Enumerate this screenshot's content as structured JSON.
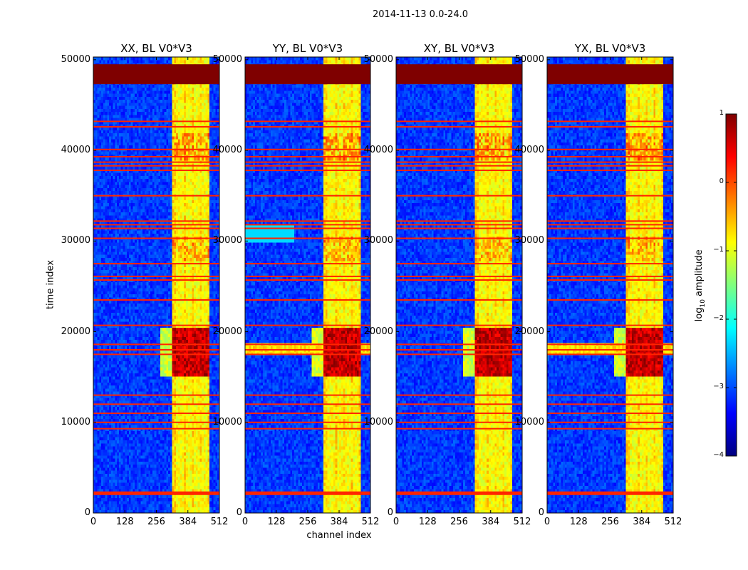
{
  "figure": {
    "suptitle": "2014-11-13 0.0-24.0"
  },
  "chart_data": {
    "type": "heatmap",
    "title": "2014-11-13 0.0-24.0",
    "xlabel": "channel index",
    "ylabel": "time index",
    "xlim": [
      0,
      512
    ],
    "ylim": [
      0,
      50300
    ],
    "xticks": [
      0,
      128,
      256,
      384,
      512
    ],
    "xtick_labels": [
      "0",
      "128",
      "256",
      "384",
      "512"
    ],
    "yticks": [
      0,
      10000,
      20000,
      30000,
      40000,
      50000
    ],
    "ytick_labels": [
      "0",
      "10000",
      "20000",
      "30000",
      "40000",
      "50000"
    ],
    "panels": [
      {
        "name": "XX, BL V0*V3",
        "title": "XX, BL V0*V3"
      },
      {
        "name": "YY, BL V0*V3",
        "title": "YY, BL V0*V3"
      },
      {
        "name": "XY, BL V0*V3",
        "title": "XY, BL V0*V3"
      },
      {
        "name": "YX, BL V0*V3",
        "title": "YX, BL V0*V3"
      }
    ],
    "colorbar": {
      "label": "log10 amplitude",
      "label_prefix": "log",
      "label_sub": "10",
      "label_suffix": " amplitude",
      "range": [
        -4,
        1
      ],
      "ticks": [
        1,
        0,
        -1,
        -2,
        -3,
        -4
      ],
      "tick_labels": [
        "1",
        "0",
        "−1",
        "−2",
        "−3",
        "−4"
      ],
      "colormap": "jet"
    },
    "features": {
      "background_level": -3.1,
      "saturated_block": {
        "time_start": 47300,
        "time_end": 49500,
        "level": 1.0
      },
      "bright_channel_band": {
        "channel_start": 320,
        "channel_end": 470,
        "level": -0.9
      },
      "bright_channel_stripes": [
        [
          320,
          338
        ],
        [
          366,
          374
        ],
        [
          398,
          406
        ],
        [
          430,
          438
        ],
        [
          462,
          470
        ]
      ],
      "strong_event": {
        "time_start": 15000,
        "time_end": 20500,
        "level": 0.5
      },
      "flagged_rows": [
        2300,
        9300,
        10000,
        11000,
        12000,
        13000,
        17500,
        18000,
        18600,
        20700,
        23500,
        25700,
        26100,
        27500,
        30300,
        31400,
        31800,
        32200,
        35000,
        37800,
        38300,
        38700,
        39300,
        40100,
        42600,
        43200
      ],
      "flagged_row_level": 0.2
    },
    "colors": {
      "jet_stops": [
        "#00007f",
        "#0000ff",
        "#007fff",
        "#00ffff",
        "#7fff7f",
        "#ffff00",
        "#ff7f00",
        "#ff0000",
        "#7f0000"
      ]
    }
  }
}
